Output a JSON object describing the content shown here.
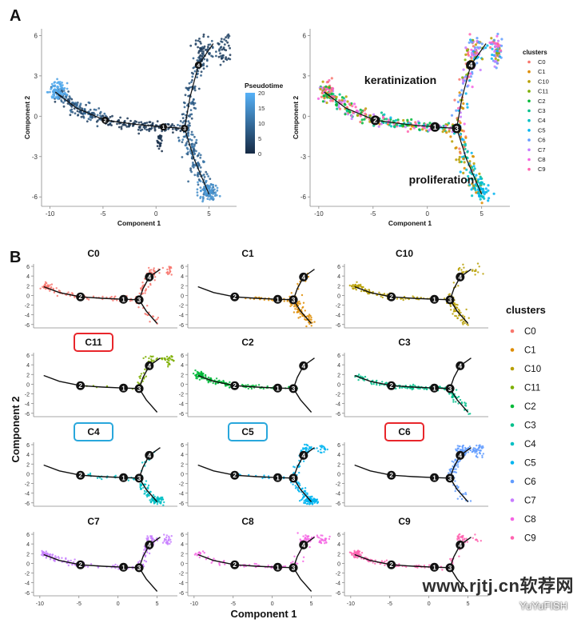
{
  "chart_data": {
    "type": "scatter",
    "panel_a_label": "A",
    "panel_b_label": "B",
    "axis": {
      "xlabel": "Component 1",
      "ylabel": "Component 2",
      "xlim": [
        -10.8,
        7.6
      ],
      "ylim": [
        -6.7,
        6.5
      ],
      "xticks": [
        -10,
        -5,
        0,
        5
      ],
      "yticks_a": [
        -6,
        -3,
        0,
        3,
        6
      ],
      "yticks_b": [
        -6,
        -4,
        -2,
        0,
        2,
        4,
        6
      ]
    },
    "trajectory": {
      "branch_points": [
        {
          "label": "1",
          "x": 0.7,
          "y": -0.8
        },
        {
          "label": "2",
          "x": -4.8,
          "y": -0.3
        },
        {
          "label": "3",
          "x": 2.7,
          "y": -0.9
        },
        {
          "label": "4",
          "x": 4.0,
          "y": 3.8
        }
      ],
      "segments": [
        [
          [
            -9.5,
            1.8
          ],
          [
            -7.5,
            0.6
          ],
          [
            -4.8,
            -0.3
          ],
          [
            -2.0,
            -0.6
          ],
          [
            0.7,
            -0.8
          ],
          [
            2.7,
            -0.9
          ]
        ],
        [
          [
            2.7,
            -0.9
          ],
          [
            3.2,
            1.4
          ],
          [
            4.0,
            3.8
          ],
          [
            5.4,
            5.4
          ]
        ],
        [
          [
            2.7,
            -0.9
          ],
          [
            3.6,
            -3.2
          ],
          [
            5.0,
            -5.8
          ]
        ]
      ]
    },
    "pseudotime_legend": {
      "title": "Pseudotime",
      "ticks": [
        0,
        5,
        10,
        15,
        20
      ],
      "range": [
        0,
        20
      ]
    },
    "annotations": [
      {
        "text": "keratinization",
        "x": -5.8,
        "y": 2.4
      },
      {
        "text": "proliferation",
        "x": -1.7,
        "y": -5.0
      }
    ],
    "clusters_legend_title": "clusters",
    "clusters": [
      {
        "name": "C0",
        "color": "#F8766D",
        "outlined": false,
        "outline_color": ""
      },
      {
        "name": "C1",
        "color": "#DE8C00",
        "outlined": false,
        "outline_color": ""
      },
      {
        "name": "C10",
        "color": "#B79F00",
        "outlined": false,
        "outline_color": ""
      },
      {
        "name": "C11",
        "color": "#7CAE00",
        "outlined": true,
        "outline_color": "#e8262b"
      },
      {
        "name": "C2",
        "color": "#00BA38",
        "outlined": false,
        "outline_color": ""
      },
      {
        "name": "C3",
        "color": "#00C08B",
        "outlined": false,
        "outline_color": ""
      },
      {
        "name": "C4",
        "color": "#00BFC4",
        "outlined": true,
        "outline_color": "#29a7dc"
      },
      {
        "name": "C5",
        "color": "#00B4F0",
        "outlined": true,
        "outline_color": "#29a7dc"
      },
      {
        "name": "C6",
        "color": "#619CFF",
        "outlined": true,
        "outline_color": "#e8262b"
      },
      {
        "name": "C7",
        "color": "#C77CFF",
        "outlined": false,
        "outline_color": ""
      },
      {
        "name": "C8",
        "color": "#F564E3",
        "outlined": false,
        "outline_color": ""
      },
      {
        "name": "C9",
        "color": "#FF64B0",
        "outlined": false,
        "outline_color": ""
      }
    ],
    "panel_b_order": [
      "C0",
      "C1",
      "C10",
      "C11",
      "C2",
      "C3",
      "C4",
      "C5",
      "C6",
      "C7",
      "C8",
      "C9"
    ]
  },
  "watermark": {
    "text": "www.rjtj.cn软荐网",
    "sub": "YuYuFISH"
  }
}
